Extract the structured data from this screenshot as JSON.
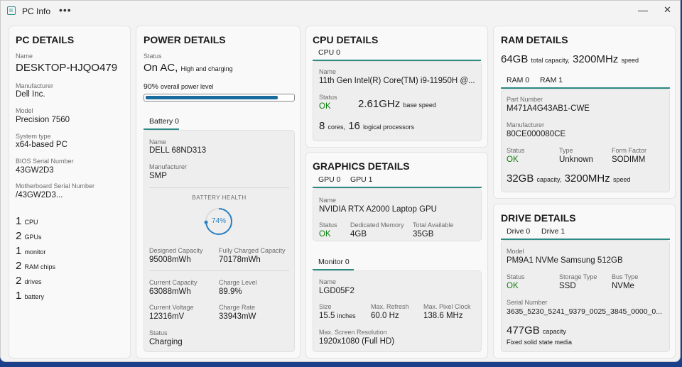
{
  "window": {
    "title": "PC Info",
    "more": "•••",
    "minimize": "—",
    "close": "✕"
  },
  "pc": {
    "title": "PC DETAILS",
    "name_label": "Name",
    "name": "DESKTOP-HJQO479",
    "manufacturer_label": "Manufacturer",
    "manufacturer": "Dell Inc.",
    "model_label": "Model",
    "model": "Precision 7560",
    "system_type_label": "System type",
    "system_type": "x64-based PC",
    "bios_label": "BIOS Serial Number",
    "bios": "43GW2D3",
    "mb_label": "Motherboard Serial Number",
    "mb": "/43GW2D3...",
    "counts": [
      {
        "n": "1",
        "unit": "CPU"
      },
      {
        "n": "2",
        "unit": "GPUs"
      },
      {
        "n": "1",
        "unit": "monitor"
      },
      {
        "n": "2",
        "unit": "RAM chips"
      },
      {
        "n": "2",
        "unit": "drives"
      },
      {
        "n": "1",
        "unit": "battery"
      }
    ]
  },
  "power": {
    "title": "POWER DETAILS",
    "status_label": "Status",
    "status": "On AC,",
    "status_sub": "High and charging",
    "level": "90%",
    "level_sub": "overall power level",
    "level_fraction": 0.9,
    "tab": "Battery 0",
    "battery": {
      "name_label": "Name",
      "name": "DELL 68ND313",
      "manufacturer_label": "Manufacturer",
      "manufacturer": "SMP",
      "health_label": "BATTERY HEALTH",
      "health": "74%",
      "health_fraction": 0.74,
      "designed_label": "Designed Capacity",
      "designed": "95008mWh",
      "full_label": "Fully Charged Capacity",
      "full": "70178mWh",
      "current_label": "Current Capacity",
      "current": "63088mWh",
      "charge_label": "Charge Level",
      "charge": "89.9%",
      "voltage_label": "Current Voltage",
      "voltage": "12316mV",
      "rate_label": "Charge Rate",
      "rate": "33943mW",
      "status_label": "Status",
      "status": "Charging"
    }
  },
  "cpu": {
    "title": "CPU DETAILS",
    "tab": "CPU 0",
    "name_label": "Name",
    "name": "11th Gen Intel(R) Core(TM) i9-11950H @...",
    "status_label": "Status",
    "status": "OK",
    "speed": "2.61GHz",
    "speed_sub": "base speed",
    "cores": "8",
    "cores_sub": "cores,",
    "logical": "16",
    "logical_sub": "logical processors"
  },
  "gpu": {
    "title": "GRAPHICS DETAILS",
    "tabs": [
      "GPU 0",
      "GPU 1"
    ],
    "name_label": "Name",
    "name": "NVIDIA RTX A2000 Laptop GPU",
    "status_label": "Status",
    "status": "OK",
    "dedicated_label": "Dedicated Memory",
    "dedicated": "4GB",
    "total_label": "Total Available",
    "total": "35GB",
    "monitor_tab": "Monitor 0",
    "monitor": {
      "name_label": "Name",
      "name": "LGD05F2",
      "size_label": "Size",
      "size": "15.5",
      "size_sub": "inches",
      "refresh_label": "Max. Refresh",
      "refresh": "60.0 Hz",
      "clock_label": "Max. Pixel Clock",
      "clock": "138.6 MHz",
      "res_label": "Max. Screen Resolution",
      "res": "1920x1080 (Full HD)"
    }
  },
  "ram": {
    "title": "RAM DETAILS",
    "total": "64GB",
    "total_sub": "total capacity,",
    "speed": "3200MHz",
    "speed_sub": "speed",
    "tabs": [
      "RAM 0",
      "RAM 1"
    ],
    "part_label": "Part Number",
    "part": "M471A4G43AB1-CWE",
    "manufacturer_label": "Manufacturer",
    "manufacturer": "80CE000080CE",
    "status_label": "Status",
    "status": "OK",
    "type_label": "Type",
    "type": "Unknown",
    "form_label": "Form Factor",
    "form": "SODIMM",
    "cap": "32GB",
    "cap_sub": "capacity,",
    "cap_speed": "3200MHz",
    "cap_speed_sub": "speed"
  },
  "drive": {
    "title": "DRIVE DETAILS",
    "tabs": [
      "Drive 0",
      "Drive 1"
    ],
    "model_label": "Model",
    "model": "PM9A1 NVMe Samsung 512GB",
    "status_label": "Status",
    "status": "OK",
    "storage_label": "Storage Type",
    "storage": "SSD",
    "bus_label": "Bus Type",
    "bus": "NVMe",
    "serial_label": "Serial Number",
    "serial": "3635_5230_5241_9379_0025_3845_0000_0...",
    "cap": "477GB",
    "cap_sub": "capacity",
    "media": "Fixed solid state media"
  },
  "colors": {
    "accent": "#2d8a84",
    "ok": "#107c10",
    "bar": "#1a6b9e"
  }
}
